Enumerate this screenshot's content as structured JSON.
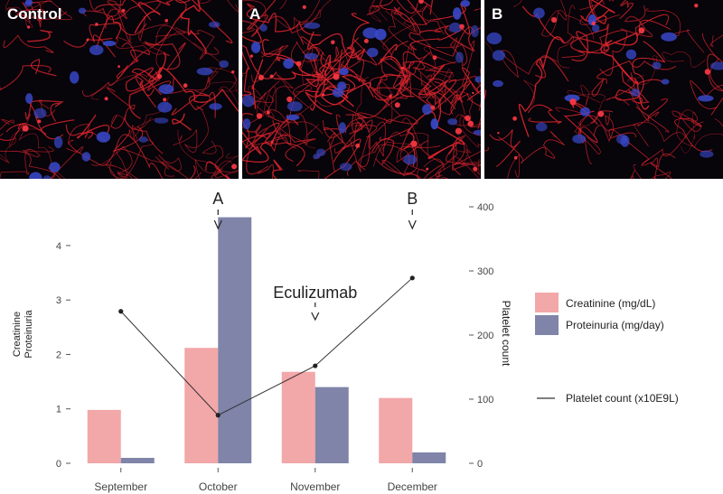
{
  "panels": [
    {
      "label": "Control"
    },
    {
      "label": "A"
    },
    {
      "label": "B"
    }
  ],
  "colors": {
    "creatinine": "#f2a7a8",
    "proteinuria": "#7f84a8",
    "platelet_line": "#333333",
    "panel_background": "#07040a",
    "fiber": "#d8242c",
    "nucleus": "#3848c8"
  },
  "chart_data": {
    "type": "bar",
    "categories": [
      "September",
      "October",
      "November",
      "December"
    ],
    "series": [
      {
        "name": "Creatinine (mg/dL)",
        "values": [
          0.98,
          2.12,
          1.68,
          1.2
        ],
        "axis": "left"
      },
      {
        "name": "Proteinuria (mg/day)",
        "values": [
          0.1,
          4.52,
          1.4,
          0.2
        ],
        "axis": "left"
      }
    ],
    "line_series": {
      "name": "Platelet count (x10E9L)",
      "values": [
        237,
        75,
        152,
        289
      ],
      "axis": "right"
    },
    "ylabel_left": [
      "Creatinine",
      "Proteinuria"
    ],
    "ylabel_right": "Platelet count",
    "ylim_left": [
      0,
      4.7
    ],
    "yticks_left": [
      "0",
      "1",
      "2",
      "3",
      "4"
    ],
    "ylim_right": [
      0,
      400
    ],
    "yticks_right": [
      "0",
      "100",
      "200",
      "300",
      "400"
    ],
    "annotations": [
      {
        "text": "A",
        "category": "October"
      },
      {
        "text": "Eculizumab",
        "category": "November"
      },
      {
        "text": "B",
        "category": "December"
      }
    ],
    "legend_placement": "right",
    "grid": false
  }
}
